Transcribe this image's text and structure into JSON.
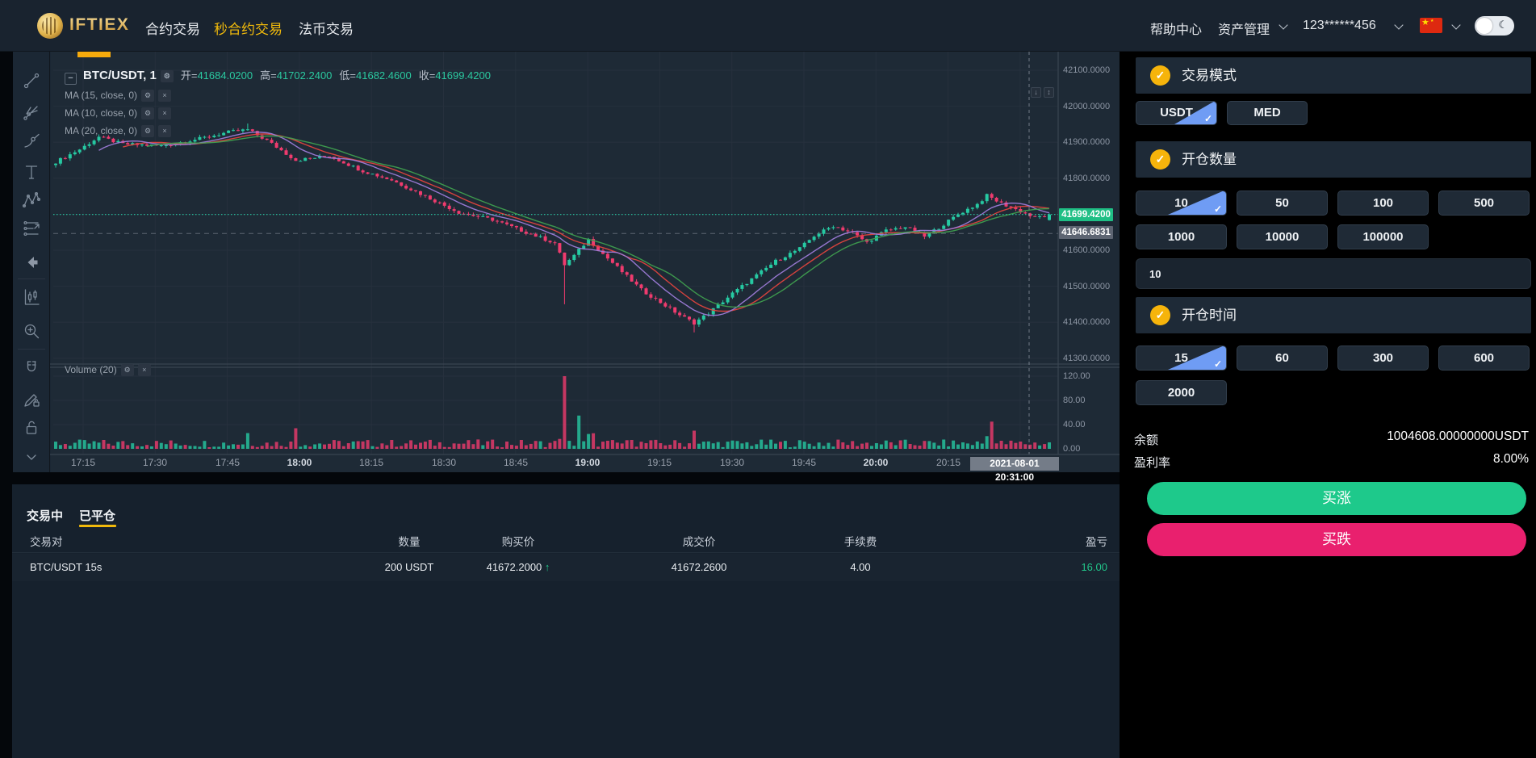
{
  "navbar": {
    "logo_text": "IFTIEX",
    "items": [
      {
        "label": "合约交易",
        "active": false
      },
      {
        "label": "秒合约交易",
        "active": true
      },
      {
        "label": "法币交易",
        "active": false
      }
    ],
    "help": "帮助中心",
    "assets": "资产管理",
    "account": "123******456"
  },
  "chart": {
    "legend": {
      "symbol": "BTC/USDT, 1",
      "open_label": "开=",
      "open_value": "41684.0200",
      "high_label": "高=",
      "high_value": "41702.2400",
      "low_label": "低=",
      "low_value": "41682.4600",
      "close_label": "收=",
      "close_value": "41699.4200"
    },
    "ma_labels": [
      "MA (15, close, 0)",
      "MA (10, close, 0)",
      "MA (20, close, 0)"
    ],
    "volume_label": "Volume (20)",
    "price_tag": "41699.4200",
    "prev_tag": "41646.6831",
    "date_tag": "2021-08-01 20:31:00",
    "gear_glyph": "⚙",
    "close_glyph": "×",
    "scroll_down_glyph": "↓",
    "scroll_scale_glyph": "↕"
  },
  "chart_data": {
    "type": "candlestick",
    "symbol": "BTC/USDT",
    "interval_minutes": 1,
    "title": "BTC/USDT 1-minute candles with MA(15), MA(10), MA(20) and Volume(20)",
    "ylim": [
      41300,
      42100
    ],
    "price_ticks": [
      42100,
      42000,
      41900,
      41800,
      41700,
      41600,
      41500,
      41400,
      41300
    ],
    "volume_ticks": [
      120,
      80,
      40,
      0
    ],
    "time_labels": [
      "17:15",
      "17:30",
      "17:45",
      "18:00",
      "18:15",
      "18:30",
      "18:45",
      "19:00",
      "19:15",
      "19:30",
      "19:45",
      "20:00",
      "20:15"
    ],
    "last_price": 41699.42,
    "reference_price": 41646.6831,
    "current_candle": {
      "open": 41684.02,
      "high": 41702.24,
      "low": 41682.46,
      "close": 41699.42
    },
    "price_waypoints": [
      [
        0,
        41845
      ],
      [
        5,
        41880
      ],
      [
        9,
        41915
      ],
      [
        14,
        41895
      ],
      [
        22,
        41890
      ],
      [
        30,
        41910
      ],
      [
        36,
        41928
      ],
      [
        40,
        41935
      ],
      [
        44,
        41905
      ],
      [
        50,
        41850
      ],
      [
        57,
        41862
      ],
      [
        64,
        41820
      ],
      [
        70,
        41795
      ],
      [
        77,
        41750
      ],
      [
        84,
        41705
      ],
      [
        91,
        41685
      ],
      [
        97,
        41655
      ],
      [
        104,
        41620
      ],
      [
        106,
        41560
      ],
      [
        108,
        41585
      ],
      [
        111,
        41630
      ],
      [
        114,
        41590
      ],
      [
        118,
        41540
      ],
      [
        122,
        41490
      ],
      [
        126,
        41455
      ],
      [
        130,
        41420
      ],
      [
        133,
        41398
      ],
      [
        136,
        41425
      ],
      [
        141,
        41480
      ],
      [
        146,
        41530
      ],
      [
        150,
        41570
      ],
      [
        155,
        41605
      ],
      [
        158,
        41640
      ],
      [
        162,
        41668
      ],
      [
        166,
        41648
      ],
      [
        169,
        41622
      ],
      [
        173,
        41655
      ],
      [
        177,
        41665
      ],
      [
        181,
        41638
      ],
      [
        185,
        41672
      ],
      [
        188,
        41700
      ],
      [
        192,
        41728
      ],
      [
        194,
        41752
      ],
      [
        197,
        41730
      ],
      [
        201,
        41708
      ],
      [
        204,
        41690
      ],
      [
        207,
        41699
      ]
    ],
    "special_candles": [
      {
        "i": 106,
        "low": 41450,
        "vol": 120
      },
      {
        "i": 109,
        "vol": 55
      },
      {
        "i": 40,
        "high": 41952,
        "vol": 26
      },
      {
        "i": 133,
        "low": 41372,
        "vol": 30
      },
      {
        "i": 195,
        "vol": 45
      },
      {
        "i": 50,
        "vol": 34
      }
    ],
    "colors": {
      "up": "#26c9a2",
      "down": "#ef3b6e",
      "ma15": "#e0433e",
      "ma10": "#9d7bd8",
      "ma20": "#3f9e4f"
    }
  },
  "toolbar": {
    "icons": [
      "trend-line-tool",
      "pitchfork-tool",
      "brush-tool",
      "text-tool",
      "xabcd-pattern-tool",
      "forecast-tool",
      "back-arrow",
      "indicator-candles",
      "zoom-in-tool",
      "magnet-tool",
      "draw-lock-tool",
      "unlock-tool",
      "chevron-down"
    ]
  },
  "positions_panel": {
    "tabs": [
      {
        "label": "交易中",
        "active": false
      },
      {
        "label": "已平仓",
        "active": true
      }
    ],
    "columns": [
      "交易对",
      "数量",
      "购买价",
      "成交价",
      "手续费",
      "盈亏"
    ],
    "rows": [
      {
        "pair": "BTC/USDT 15s",
        "amount": "200 USDT",
        "buy_price": "41672.2000",
        "deal_price": "41672.2600",
        "fee": "4.00",
        "pnl": "16.00",
        "direction": "up"
      }
    ]
  },
  "order_panel": {
    "trade_mode": {
      "title": "交易模式",
      "options": [
        {
          "label": "USDT",
          "selected": true
        },
        {
          "label": "MED",
          "selected": false
        }
      ]
    },
    "quantity": {
      "title": "开仓数量",
      "options": [
        {
          "label": "10",
          "selected": true
        },
        {
          "label": "50",
          "selected": false
        },
        {
          "label": "100",
          "selected": false
        },
        {
          "label": "500",
          "selected": false
        },
        {
          "label": "1000",
          "selected": false
        },
        {
          "label": "10000",
          "selected": false
        },
        {
          "label": "100000",
          "selected": false
        }
      ],
      "input_value": "10"
    },
    "duration": {
      "title": "开仓时间",
      "options": [
        {
          "label": "15",
          "selected": true
        },
        {
          "label": "60",
          "selected": false
        },
        {
          "label": "300",
          "selected": false
        },
        {
          "label": "600",
          "selected": false
        },
        {
          "label": "2000",
          "selected": false
        }
      ]
    },
    "stats": [
      {
        "label": "余额",
        "value": "1004608.00000000USDT"
      },
      {
        "label": "盈利率",
        "value": "8.00%"
      }
    ],
    "buy_up": "买涨",
    "buy_down": "买跌",
    "colors": {
      "buy_up": "#1ec98b",
      "buy_down": "#e9206e",
      "accent": "#f0b90b",
      "selected_check": "#6f9cf4"
    }
  }
}
